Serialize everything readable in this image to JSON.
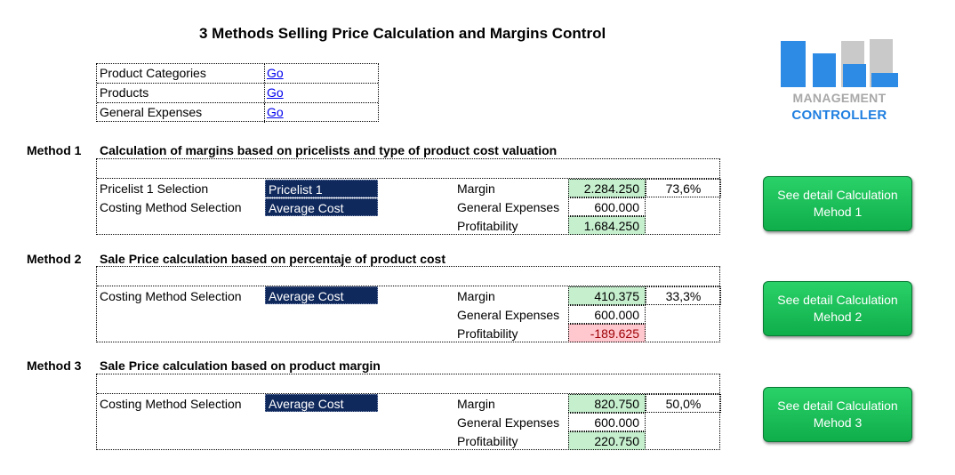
{
  "title": "3 Methods Selling Price Calculation and Margins Control",
  "nav": [
    {
      "label": "Product Categories",
      "link": "Go"
    },
    {
      "label": "Products",
      "link": "Go"
    },
    {
      "label": "General Expenses",
      "link": "Go"
    }
  ],
  "logo": {
    "line1": "MANAGEMENT",
    "line2": "CONTROLLER",
    "colors": [
      "#2d8be6",
      "#c9c9c9"
    ]
  },
  "methods": [
    {
      "label": "Method 1",
      "heading": "Calculation of margins based on pricelists and type of product cost valuation",
      "pricelist_label": "Pricelist 1 Selection",
      "pricelist_value": "Pricelist 1",
      "costing_label": "Costing Method Selection",
      "costing_value": "Average Cost",
      "margin_label": "Margin",
      "margin_value": "2.284.250",
      "margin_pct": "73,6%",
      "expenses_label": "General Expenses",
      "expenses_value": "600.000",
      "profit_label": "Profitability",
      "profit_value": "1.684.250",
      "button_line1": "See detail Calculation",
      "button_line2": "Mehod 1"
    },
    {
      "label": "Method 2",
      "heading": "Sale Price calculation based on percentaje of product cost",
      "costing_label": "Costing Method Selection",
      "costing_value": "Average Cost",
      "margin_label": "Margin",
      "margin_value": "410.375",
      "margin_pct": "33,3%",
      "expenses_label": "General Expenses",
      "expenses_value": "600.000",
      "profit_label": "Profitability",
      "profit_value": "-189.625",
      "button_line1": "See detail Calculation",
      "button_line2": "Mehod 2"
    },
    {
      "label": "Method 3",
      "heading": "Sale Price calculation based on product margin",
      "costing_label": "Costing Method Selection",
      "costing_value": "Average Cost",
      "margin_label": "Margin",
      "margin_value": "820.750",
      "margin_pct": "50,0%",
      "expenses_label": "General Expenses",
      "expenses_value": "600.000",
      "profit_label": "Profitability",
      "profit_value": "220.750",
      "button_line1": "See detail Calculation",
      "button_line2": "Mehod 3"
    }
  ]
}
